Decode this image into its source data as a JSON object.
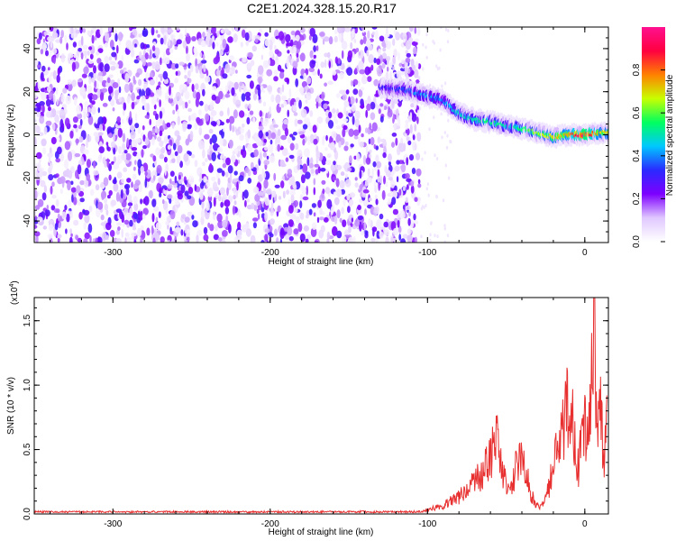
{
  "figure_title": "C2E1.2024.328.15.20.R17",
  "chart_data": [
    {
      "type": "heatmap",
      "title": "",
      "xlabel": "Height of straight line (km)",
      "ylabel": "Frequency (Hz)",
      "xlim": [
        -350,
        15
      ],
      "ylim": [
        -50,
        50
      ],
      "xticks": [
        -300,
        -200,
        -100,
        0
      ],
      "yticks": [
        -40,
        -20,
        0,
        20,
        40
      ],
      "colorbar": {
        "label": "Normalized spectral amplitude",
        "range": [
          0,
          1
        ],
        "ticks": [
          0.0,
          0.2,
          0.4,
          0.6,
          0.8
        ],
        "colormap": [
          "#ffffff",
          "#e0c8ff",
          "#7d00ff",
          "#2a2aff",
          "#00c8ff",
          "#00ff60",
          "#c8ff00",
          "#ff8000",
          "#ff0040",
          "#ff1090"
        ]
      },
      "noise_region": {
        "x_range": [
          -350,
          -105
        ],
        "amplitude_typical": 0.15,
        "amplitude_max": 0.25
      },
      "signal_trend": [
        {
          "x": -130,
          "y": 22,
          "amplitude": 0.3
        },
        {
          "x": -115,
          "y": 21,
          "amplitude": 0.35
        },
        {
          "x": -100,
          "y": 18,
          "amplitude": 0.45
        },
        {
          "x": -90,
          "y": 16,
          "amplitude": 0.4
        },
        {
          "x": -80,
          "y": 10,
          "amplitude": 0.5
        },
        {
          "x": -70,
          "y": 7,
          "amplitude": 0.5
        },
        {
          "x": -60,
          "y": 6,
          "amplitude": 0.55
        },
        {
          "x": -50,
          "y": 4,
          "amplitude": 0.5
        },
        {
          "x": -40,
          "y": 3,
          "amplitude": 0.55
        },
        {
          "x": -30,
          "y": 1,
          "amplitude": 0.65
        },
        {
          "x": -20,
          "y": -1,
          "amplitude": 0.7
        },
        {
          "x": -10,
          "y": 0,
          "amplitude": 0.75
        },
        {
          "x": 0,
          "y": 0,
          "amplitude": 1.0
        },
        {
          "x": 10,
          "y": 1,
          "amplitude": 0.7
        }
      ]
    },
    {
      "type": "line",
      "title": "",
      "xlabel": "Height of straight line (km)",
      "ylabel": "SNR (10 * v/v)",
      "y_scale_label": "(x10",
      "y_scale_exponent": "4",
      "y_scale_close": ")",
      "xlim": [
        -350,
        15
      ],
      "ylim": [
        0,
        1.68
      ],
      "xticks": [
        -300,
        -200,
        -100,
        0
      ],
      "yticks": [
        0.0,
        0.5,
        1.0,
        1.5
      ],
      "ytick_labels": [
        "0.0",
        "0.5",
        "1.0",
        "1.5"
      ],
      "series": [
        {
          "color": "#e83030",
          "x": [
            -350,
            -300,
            -250,
            -200,
            -150,
            -110,
            -100,
            -95,
            -90,
            -85,
            -80,
            -75,
            -70,
            -65,
            -60,
            -58,
            -56,
            -54,
            -52,
            -50,
            -48,
            -46,
            -44,
            -42,
            -40,
            -38,
            -36,
            -34,
            -32,
            -30,
            -28,
            -26,
            -24,
            -22,
            -20,
            -18,
            -16,
            -14,
            -12,
            -10,
            -8,
            -6,
            -4,
            -2,
            0,
            2,
            4,
            6,
            8,
            10,
            12,
            14
          ],
          "y": [
            0.02,
            0.02,
            0.02,
            0.02,
            0.02,
            0.02,
            0.03,
            0.06,
            0.08,
            0.12,
            0.16,
            0.22,
            0.3,
            0.38,
            0.5,
            0.72,
            0.76,
            0.55,
            0.4,
            0.28,
            0.2,
            0.25,
            0.45,
            0.52,
            0.48,
            0.4,
            0.3,
            0.2,
            0.12,
            0.08,
            0.06,
            0.1,
            0.2,
            0.3,
            0.45,
            0.6,
            0.55,
            0.8,
            1.18,
            0.7,
            1.18,
            0.6,
            0.4,
            0.7,
            0.9,
            0.7,
            1.4,
            1.68,
            0.8,
            1.0,
            0.5,
            0.92
          ]
        }
      ]
    }
  ]
}
